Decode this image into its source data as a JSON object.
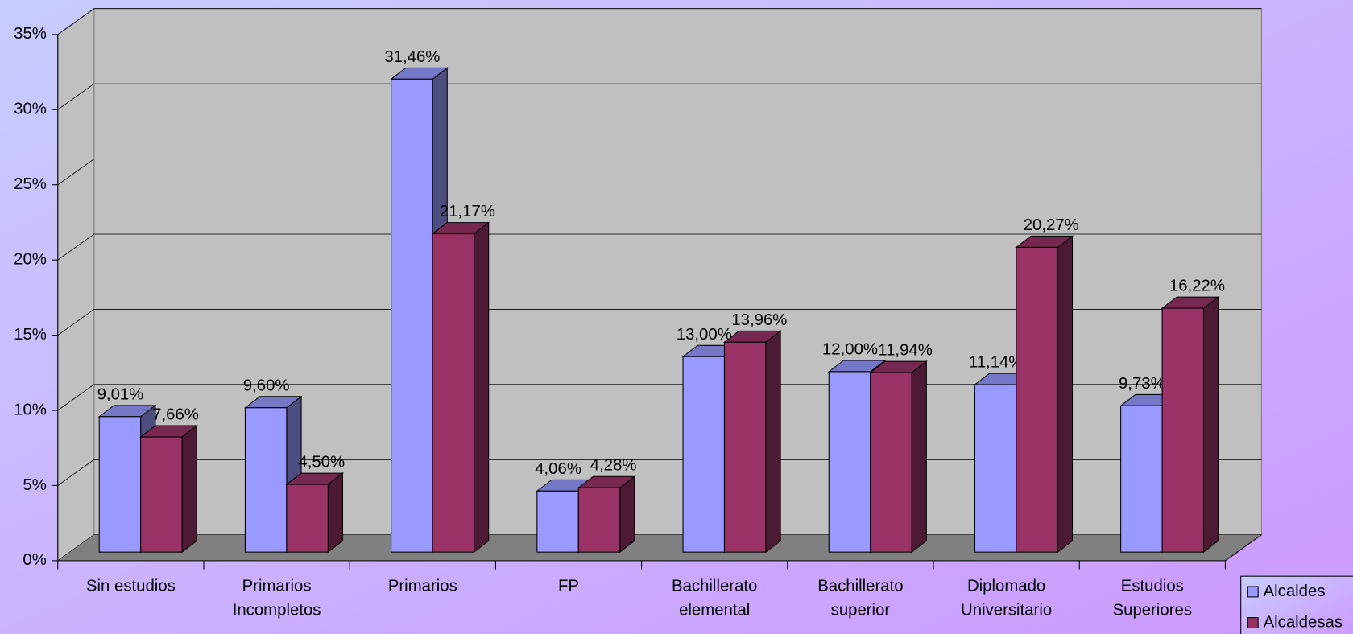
{
  "chart_data": {
    "type": "bar3d",
    "categories": [
      [
        "Sin estudios"
      ],
      [
        "Primarios",
        "Incompletos"
      ],
      [
        "Primarios"
      ],
      [
        "FP"
      ],
      [
        "Bachillerato",
        "elemental"
      ],
      [
        "Bachillerato",
        "superior"
      ],
      [
        "Diplomado",
        "Universitario"
      ],
      [
        "Estudios",
        "Superiores"
      ]
    ],
    "series": [
      {
        "name": "Alcaldes",
        "color": "#9999ff",
        "values": [
          9.01,
          9.6,
          31.46,
          4.06,
          13.0,
          12.0,
          11.14,
          9.73
        ],
        "value_labels": [
          "9,01%",
          "9,60%",
          "31,46%",
          "4,06%",
          "13,00%",
          "12,00%",
          "11,14%",
          "9,73%"
        ]
      },
      {
        "name": "Alcaldesas",
        "color": "#993366",
        "values": [
          7.66,
          4.5,
          21.17,
          4.28,
          13.96,
          11.94,
          20.27,
          16.22
        ],
        "value_labels": [
          "7,66%",
          "4,50%",
          "21,17%",
          "4,28%",
          "13,96%",
          "11,94%",
          "20,27%",
          "16,22%"
        ]
      }
    ],
    "ylim": [
      0,
      35
    ],
    "yticks": [
      {
        "value": 0,
        "label": "0%"
      },
      {
        "value": 5,
        "label": "5%"
      },
      {
        "value": 10,
        "label": "10%"
      },
      {
        "value": 15,
        "label": "15%"
      },
      {
        "value": 20,
        "label": "20%"
      },
      {
        "value": 25,
        "label": "25%"
      },
      {
        "value": 30,
        "label": "30%"
      },
      {
        "value": 35,
        "label": "35%"
      }
    ],
    "grid": true,
    "legend": "bottom-right"
  }
}
